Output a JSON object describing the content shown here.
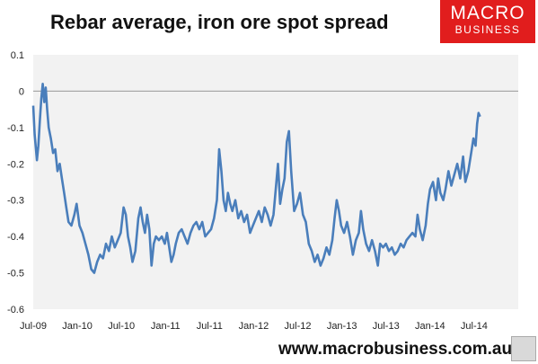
{
  "header": {
    "title": "Rebar average, iron ore spot spread"
  },
  "brand": {
    "line1": "MACRO",
    "line2": "BUSINESS",
    "color": "#e11d1d"
  },
  "footer": {
    "url": "www.macrobusiness.com.au"
  },
  "chart_data": {
    "type": "line",
    "title": "Rebar average, iron ore spot spread",
    "xlabel": "",
    "ylabel": "",
    "ylim": [
      -0.6,
      0.1
    ],
    "yticks": [
      0.1,
      0,
      -0.1,
      -0.2,
      -0.3,
      -0.4,
      -0.5,
      -0.6
    ],
    "ytick_labels": [
      "0.1",
      "0",
      "-0.1",
      "-0.2",
      "-0.3",
      "-0.4",
      "-0.5",
      "-0.6"
    ],
    "xticks": [
      "Jul-09",
      "Jan-10",
      "Jul-10",
      "Jan-11",
      "Jul-11",
      "Jan-12",
      "Jul-12",
      "Jan-13",
      "Jul-13",
      "Jan-14",
      "Jul-14"
    ],
    "xlim_months": [
      0,
      66
    ],
    "grid": false,
    "zero_line": true,
    "plot_background": "#f2f2f2",
    "series": [
      {
        "color": "#4a7ebb",
        "points": [
          [
            0.0,
            -0.04
          ],
          [
            0.2,
            -0.12
          ],
          [
            0.5,
            -0.19
          ],
          [
            0.7,
            -0.15
          ],
          [
            0.9,
            -0.08
          ],
          [
            1.1,
            -0.02
          ],
          [
            1.3,
            0.02
          ],
          [
            1.5,
            -0.03
          ],
          [
            1.7,
            0.01
          ],
          [
            1.9,
            -0.05
          ],
          [
            2.1,
            -0.1
          ],
          [
            2.4,
            -0.13
          ],
          [
            2.7,
            -0.17
          ],
          [
            3.0,
            -0.16
          ],
          [
            3.3,
            -0.22
          ],
          [
            3.6,
            -0.2
          ],
          [
            3.9,
            -0.24
          ],
          [
            4.2,
            -0.28
          ],
          [
            4.5,
            -0.32
          ],
          [
            4.8,
            -0.36
          ],
          [
            5.2,
            -0.37
          ],
          [
            5.6,
            -0.34
          ],
          [
            5.9,
            -0.31
          ],
          [
            6.3,
            -0.37
          ],
          [
            6.7,
            -0.39
          ],
          [
            7.1,
            -0.42
          ],
          [
            7.5,
            -0.45
          ],
          [
            7.9,
            -0.49
          ],
          [
            8.3,
            -0.5
          ],
          [
            8.7,
            -0.47
          ],
          [
            9.1,
            -0.45
          ],
          [
            9.5,
            -0.46
          ],
          [
            9.9,
            -0.42
          ],
          [
            10.3,
            -0.44
          ],
          [
            10.7,
            -0.4
          ],
          [
            11.1,
            -0.43
          ],
          [
            11.5,
            -0.41
          ],
          [
            11.9,
            -0.39
          ],
          [
            12.3,
            -0.32
          ],
          [
            12.6,
            -0.34
          ],
          [
            12.9,
            -0.4
          ],
          [
            13.2,
            -0.43
          ],
          [
            13.5,
            -0.47
          ],
          [
            13.9,
            -0.44
          ],
          [
            14.3,
            -0.35
          ],
          [
            14.6,
            -0.32
          ],
          [
            14.9,
            -0.36
          ],
          [
            15.2,
            -0.39
          ],
          [
            15.5,
            -0.34
          ],
          [
            15.8,
            -0.38
          ],
          [
            16.1,
            -0.48
          ],
          [
            16.4,
            -0.42
          ],
          [
            16.7,
            -0.4
          ],
          [
            17.1,
            -0.41
          ],
          [
            17.5,
            -0.4
          ],
          [
            17.9,
            -0.42
          ],
          [
            18.2,
            -0.39
          ],
          [
            18.5,
            -0.43
          ],
          [
            18.8,
            -0.47
          ],
          [
            19.1,
            -0.45
          ],
          [
            19.4,
            -0.42
          ],
          [
            19.8,
            -0.39
          ],
          [
            20.2,
            -0.38
          ],
          [
            20.6,
            -0.4
          ],
          [
            21.0,
            -0.42
          ],
          [
            21.4,
            -0.39
          ],
          [
            21.8,
            -0.37
          ],
          [
            22.2,
            -0.36
          ],
          [
            22.6,
            -0.38
          ],
          [
            23.0,
            -0.36
          ],
          [
            23.4,
            -0.4
          ],
          [
            23.8,
            -0.39
          ],
          [
            24.2,
            -0.38
          ],
          [
            24.6,
            -0.35
          ],
          [
            25.0,
            -0.3
          ],
          [
            25.3,
            -0.16
          ],
          [
            25.6,
            -0.22
          ],
          [
            25.9,
            -0.3
          ],
          [
            26.2,
            -0.33
          ],
          [
            26.5,
            -0.28
          ],
          [
            26.8,
            -0.31
          ],
          [
            27.1,
            -0.33
          ],
          [
            27.5,
            -0.3
          ],
          [
            27.9,
            -0.35
          ],
          [
            28.3,
            -0.33
          ],
          [
            28.7,
            -0.36
          ],
          [
            29.1,
            -0.34
          ],
          [
            29.5,
            -0.39
          ],
          [
            29.9,
            -0.37
          ],
          [
            30.3,
            -0.35
          ],
          [
            30.7,
            -0.33
          ],
          [
            31.1,
            -0.36
          ],
          [
            31.5,
            -0.32
          ],
          [
            31.9,
            -0.34
          ],
          [
            32.3,
            -0.37
          ],
          [
            32.7,
            -0.34
          ],
          [
            33.0,
            -0.27
          ],
          [
            33.3,
            -0.2
          ],
          [
            33.6,
            -0.31
          ],
          [
            33.9,
            -0.27
          ],
          [
            34.2,
            -0.24
          ],
          [
            34.5,
            -0.14
          ],
          [
            34.8,
            -0.11
          ],
          [
            35.1,
            -0.22
          ],
          [
            35.5,
            -0.33
          ],
          [
            35.9,
            -0.31
          ],
          [
            36.3,
            -0.28
          ],
          [
            36.7,
            -0.34
          ],
          [
            37.1,
            -0.36
          ],
          [
            37.5,
            -0.42
          ],
          [
            37.9,
            -0.44
          ],
          [
            38.3,
            -0.47
          ],
          [
            38.7,
            -0.45
          ],
          [
            39.1,
            -0.48
          ],
          [
            39.5,
            -0.46
          ],
          [
            39.9,
            -0.43
          ],
          [
            40.3,
            -0.45
          ],
          [
            40.7,
            -0.41
          ],
          [
            41.0,
            -0.35
          ],
          [
            41.3,
            -0.3
          ],
          [
            41.6,
            -0.33
          ],
          [
            41.9,
            -0.37
          ],
          [
            42.3,
            -0.39
          ],
          [
            42.7,
            -0.36
          ],
          [
            43.1,
            -0.4
          ],
          [
            43.5,
            -0.45
          ],
          [
            43.9,
            -0.41
          ],
          [
            44.3,
            -0.39
          ],
          [
            44.6,
            -0.33
          ],
          [
            44.9,
            -0.38
          ],
          [
            45.3,
            -0.42
          ],
          [
            45.7,
            -0.44
          ],
          [
            46.1,
            -0.41
          ],
          [
            46.5,
            -0.44
          ],
          [
            46.9,
            -0.48
          ],
          [
            47.2,
            -0.42
          ],
          [
            47.6,
            -0.43
          ],
          [
            48.0,
            -0.42
          ],
          [
            48.4,
            -0.44
          ],
          [
            48.8,
            -0.43
          ],
          [
            49.2,
            -0.45
          ],
          [
            49.6,
            -0.44
          ],
          [
            50.0,
            -0.42
          ],
          [
            50.4,
            -0.43
          ],
          [
            50.8,
            -0.41
          ],
          [
            51.2,
            -0.4
          ],
          [
            51.6,
            -0.39
          ],
          [
            52.0,
            -0.4
          ],
          [
            52.3,
            -0.34
          ],
          [
            52.6,
            -0.38
          ],
          [
            53.0,
            -0.41
          ],
          [
            53.4,
            -0.37
          ],
          [
            53.7,
            -0.31
          ],
          [
            54.0,
            -0.27
          ],
          [
            54.4,
            -0.25
          ],
          [
            54.8,
            -0.3
          ],
          [
            55.1,
            -0.24
          ],
          [
            55.4,
            -0.28
          ],
          [
            55.8,
            -0.3
          ],
          [
            56.1,
            -0.27
          ],
          [
            56.5,
            -0.22
          ],
          [
            56.9,
            -0.26
          ],
          [
            57.3,
            -0.23
          ],
          [
            57.7,
            -0.2
          ],
          [
            58.1,
            -0.24
          ],
          [
            58.5,
            -0.18
          ],
          [
            58.8,
            -0.25
          ],
          [
            59.2,
            -0.22
          ],
          [
            59.6,
            -0.17
          ],
          [
            59.9,
            -0.13
          ],
          [
            60.2,
            -0.15
          ],
          [
            60.4,
            -0.09
          ],
          [
            60.6,
            -0.06
          ],
          [
            60.8,
            -0.07
          ]
        ]
      }
    ]
  }
}
